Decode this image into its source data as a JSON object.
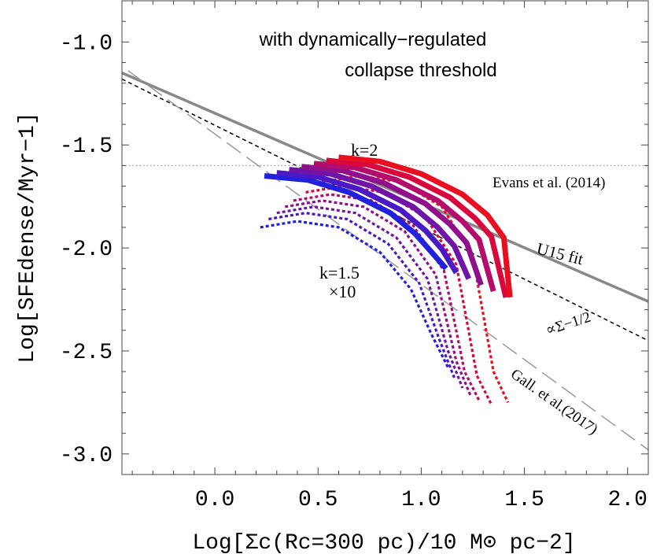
{
  "chart_data": {
    "type": "line",
    "title_line1": "with dynamically−regulated",
    "title_line2": "collapse threshold",
    "xlabel": "Log[Σc(Rc=300 pc)/10 M⊙ pc−2]",
    "ylabel": "Log[SFEdense/Myr−1]",
    "xlim": [
      -0.45,
      2.1
    ],
    "ylim": [
      -3.1,
      -0.8
    ],
    "x_ticks": [
      0.0,
      0.5,
      1.0,
      1.5,
      2.0
    ],
    "x_tick_labels": [
      "0.0",
      "0.5",
      "1.0",
      "1.5",
      "2.0"
    ],
    "y_ticks": [
      -1.0,
      -1.5,
      -2.0,
      -2.5,
      -3.0
    ],
    "y_tick_labels": [
      "-1.0",
      "-1.5",
      "-2.0",
      "-2.5",
      "-3.0"
    ],
    "grid": false,
    "reference_lines": [
      {
        "name": "U15 fit",
        "x": [
          -0.45,
          2.1
        ],
        "y": [
          -1.15,
          -2.26
        ],
        "color": "#888888",
        "style": "solid"
      },
      {
        "name": "∝Σ−1/2",
        "x": [
          -0.45,
          2.1
        ],
        "y": [
          -1.18,
          -2.45
        ],
        "color": "#000000",
        "style": "short-dash"
      },
      {
        "name": "Gall. et al.(2017)",
        "x": [
          -0.42,
          2.1
        ],
        "y": [
          -1.14,
          -2.98
        ],
        "color": "#999999",
        "style": "long-dash"
      },
      {
        "name": "Evans et al. (2014)",
        "x": [
          -0.45,
          2.1
        ],
        "y": [
          -1.6,
          -1.6
        ],
        "color": "#999999",
        "style": "dotted"
      }
    ],
    "curve_labels": {
      "k_top": "k=2",
      "k_bottom": "k=1.5",
      "factor": "×10"
    },
    "solid_series": [
      {
        "x": [
          0.24,
          0.45,
          0.65,
          0.85,
          0.97,
          1.05,
          1.12
        ],
        "y": [
          -1.65,
          -1.67,
          -1.73,
          -1.83,
          -1.93,
          -2.02,
          -2.1
        ],
        "color": "#2020dd"
      },
      {
        "x": [
          0.3,
          0.5,
          0.7,
          0.9,
          1.02,
          1.1,
          1.17
        ],
        "y": [
          -1.635,
          -1.655,
          -1.715,
          -1.815,
          -1.915,
          -2.005,
          -2.12
        ],
        "color": "#4a18c4"
      },
      {
        "x": [
          0.36,
          0.56,
          0.76,
          0.96,
          1.08,
          1.16,
          1.23
        ],
        "y": [
          -1.62,
          -1.64,
          -1.7,
          -1.8,
          -1.9,
          -1.99,
          -2.15
        ],
        "color": "#7014a8"
      },
      {
        "x": [
          0.42,
          0.62,
          0.82,
          1.02,
          1.14,
          1.22,
          1.29
        ],
        "y": [
          -1.605,
          -1.625,
          -1.685,
          -1.785,
          -1.885,
          -1.975,
          -2.18
        ],
        "color": "#90108c"
      },
      {
        "x": [
          0.48,
          0.68,
          0.88,
          1.08,
          1.2,
          1.28,
          1.35
        ],
        "y": [
          -1.59,
          -1.61,
          -1.67,
          -1.77,
          -1.87,
          -1.96,
          -2.21
        ],
        "color": "#b40c6a"
      },
      {
        "x": [
          0.54,
          0.74,
          0.94,
          1.14,
          1.26,
          1.34,
          1.41
        ],
        "y": [
          -1.575,
          -1.595,
          -1.655,
          -1.755,
          -1.855,
          -1.945,
          -2.24
        ],
        "color": "#d8083e"
      },
      {
        "x": [
          0.6,
          0.8,
          1.0,
          1.2,
          1.32,
          1.4,
          1.43
        ],
        "y": [
          -1.56,
          -1.58,
          -1.64,
          -1.74,
          -1.84,
          -1.95,
          -2.24
        ],
        "color": "#e81020"
      }
    ],
    "dotted_series": [
      {
        "x": [
          0.22,
          0.4,
          0.6,
          0.8,
          0.95,
          1.05,
          1.13
        ],
        "y": [
          -1.9,
          -1.87,
          -1.9,
          -2.02,
          -2.2,
          -2.42,
          -2.58
        ],
        "color": "#2020dd"
      },
      {
        "x": [
          0.26,
          0.44,
          0.64,
          0.84,
          0.99,
          1.09,
          1.16
        ],
        "y": [
          -1.86,
          -1.83,
          -1.86,
          -1.98,
          -2.17,
          -2.45,
          -2.63
        ],
        "color": "#4a18c4"
      },
      {
        "x": [
          0.3,
          0.48,
          0.68,
          0.88,
          1.03,
          1.13,
          1.2
        ],
        "y": [
          -1.83,
          -1.8,
          -1.83,
          -1.95,
          -2.15,
          -2.5,
          -2.68
        ],
        "color": "#7014a8"
      },
      {
        "x": [
          0.34,
          0.52,
          0.72,
          0.92,
          1.07,
          1.17,
          1.24
        ],
        "y": [
          -1.8,
          -1.77,
          -1.8,
          -1.92,
          -2.13,
          -2.55,
          -2.72
        ],
        "color": "#90108c"
      },
      {
        "x": [
          0.38,
          0.56,
          0.76,
          0.96,
          1.11,
          1.21,
          1.28
        ],
        "y": [
          -1.77,
          -1.74,
          -1.77,
          -1.89,
          -2.11,
          -2.6,
          -2.74
        ],
        "color": "#b40c6a"
      },
      {
        "x": [
          0.44,
          0.62,
          0.82,
          1.02,
          1.17,
          1.27,
          1.34
        ],
        "y": [
          -1.73,
          -1.7,
          -1.73,
          -1.85,
          -2.08,
          -2.62,
          -2.76
        ],
        "color": "#d8083e"
      },
      {
        "x": [
          0.52,
          0.7,
          0.9,
          1.1,
          1.25,
          1.35,
          1.42
        ],
        "y": [
          -1.68,
          -1.65,
          -1.68,
          -1.8,
          -2.04,
          -2.6,
          -2.75
        ],
        "color": "#e81020"
      }
    ]
  }
}
